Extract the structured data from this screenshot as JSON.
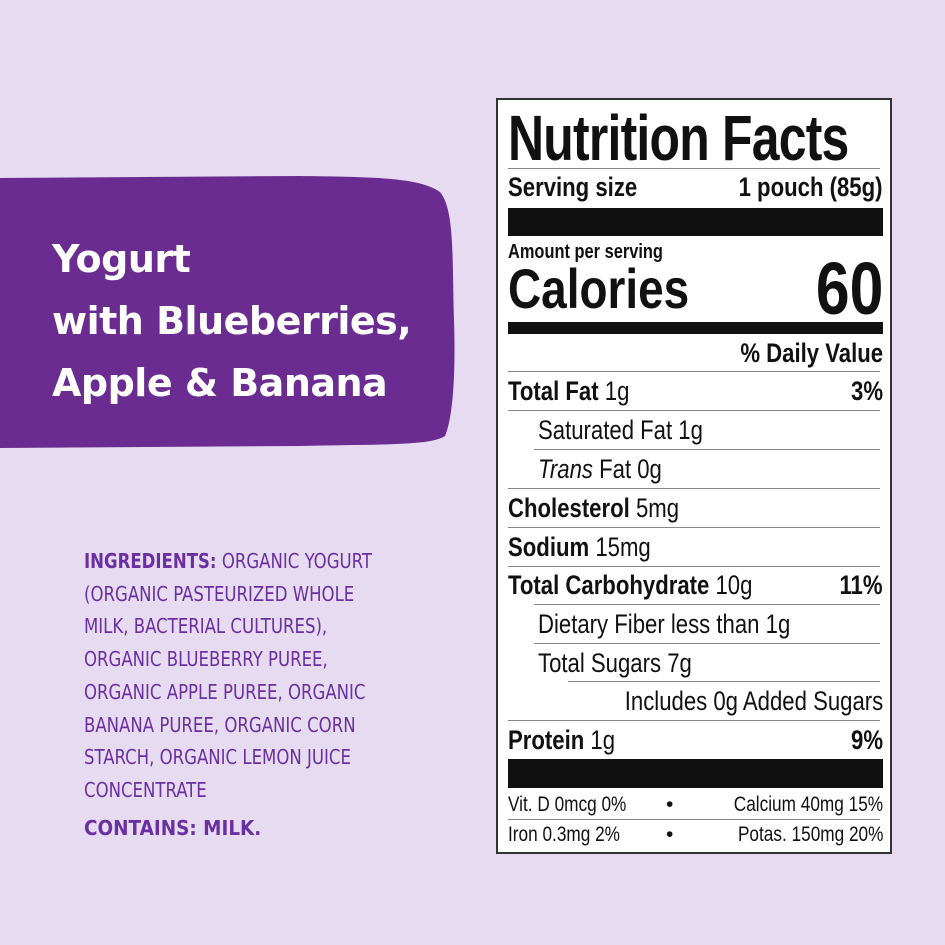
{
  "colors": {
    "background": "#e7dbf1",
    "banner": "#6a2c91",
    "ingredients_text": "#6a2fa0"
  },
  "product": {
    "title_lines": [
      "Yogurt",
      "with Blueberries,",
      "Apple & Banana"
    ]
  },
  "ingredients": {
    "label": "INGREDIENTS:",
    "lines": [
      " ORGANIC YOGURT",
      "(ORGANIC PASTEURIZED WHOLE",
      "MILK, BACTERIAL CULTURES),",
      "ORGANIC BLUEBERRY PUREE,",
      "ORGANIC APPLE PUREE, ORGANIC",
      "BANANA PUREE, ORGANIC CORN",
      "STARCH, ORGANIC LEMON JUICE",
      "CONCENTRATE"
    ],
    "contains": "CONTAINS: MILK."
  },
  "nutrition": {
    "title": "Nutrition Facts",
    "serving_label": "Serving size",
    "serving_value": "1 pouch (85g)",
    "amount_per_serving": "Amount per serving",
    "calories_label": "Calories",
    "calories_value": "60",
    "dv_header": "% Daily Value",
    "rows": [
      {
        "name": "Total Fat",
        "amount": " 1g",
        "dv": "3%"
      },
      {
        "name": "Saturated Fat 1g",
        "amount": "",
        "dv": ""
      },
      {
        "name": "Trans",
        "amount": " Fat 0g",
        "dv": ""
      },
      {
        "name": "Cholesterol",
        "amount": " 5mg",
        "dv": ""
      },
      {
        "name": "Sodium",
        "amount": " 15mg",
        "dv": ""
      },
      {
        "name": "Total Carbohydrate",
        "amount": " 10g",
        "dv": "11%"
      },
      {
        "name": "Dietary Fiber less than 1g",
        "amount": "",
        "dv": ""
      },
      {
        "name": "Total Sugars 7g",
        "amount": "",
        "dv": ""
      },
      {
        "name": "Includes 0g Added Sugars",
        "amount": "",
        "dv": ""
      },
      {
        "name": "Protein",
        "amount": " 1g",
        "dv": "9%"
      }
    ],
    "micros": [
      {
        "left": "Vit. D 0mcg 0%",
        "right": "Calcium 40mg 15%"
      },
      {
        "left": "Iron 0.3mg 2%",
        "right": "Potas. 150mg 20%"
      }
    ],
    "bullet": "•"
  }
}
